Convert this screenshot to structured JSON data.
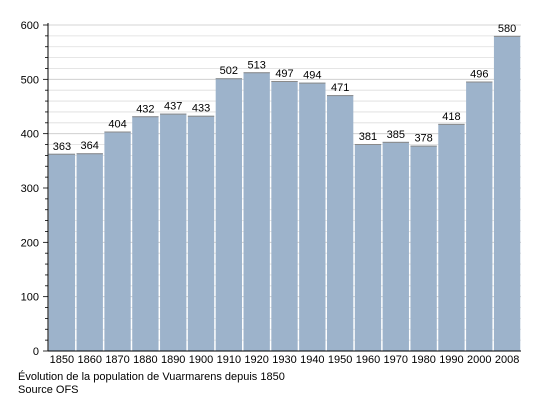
{
  "chart_data": {
    "type": "bar",
    "categories": [
      "1850",
      "1860",
      "1870",
      "1880",
      "1890",
      "1900",
      "1910",
      "1920",
      "1930",
      "1940",
      "1950",
      "1960",
      "1970",
      "1980",
      "1990",
      "2000",
      "2008"
    ],
    "values": [
      363,
      364,
      404,
      432,
      437,
      433,
      502,
      513,
      497,
      494,
      471,
      381,
      385,
      378,
      418,
      496,
      580
    ],
    "yticks": [
      0,
      100,
      200,
      300,
      400,
      500,
      600
    ],
    "ylim": [
      0,
      600
    ],
    "grid": true,
    "bar_color": "#9db3cb",
    "bar_top_color": "#8a8a8a",
    "grid_color": "#dddddd"
  },
  "caption": {
    "line1": "Évolution de la population de Vuarmarens depuis 1850",
    "line2": "Source OFS"
  }
}
